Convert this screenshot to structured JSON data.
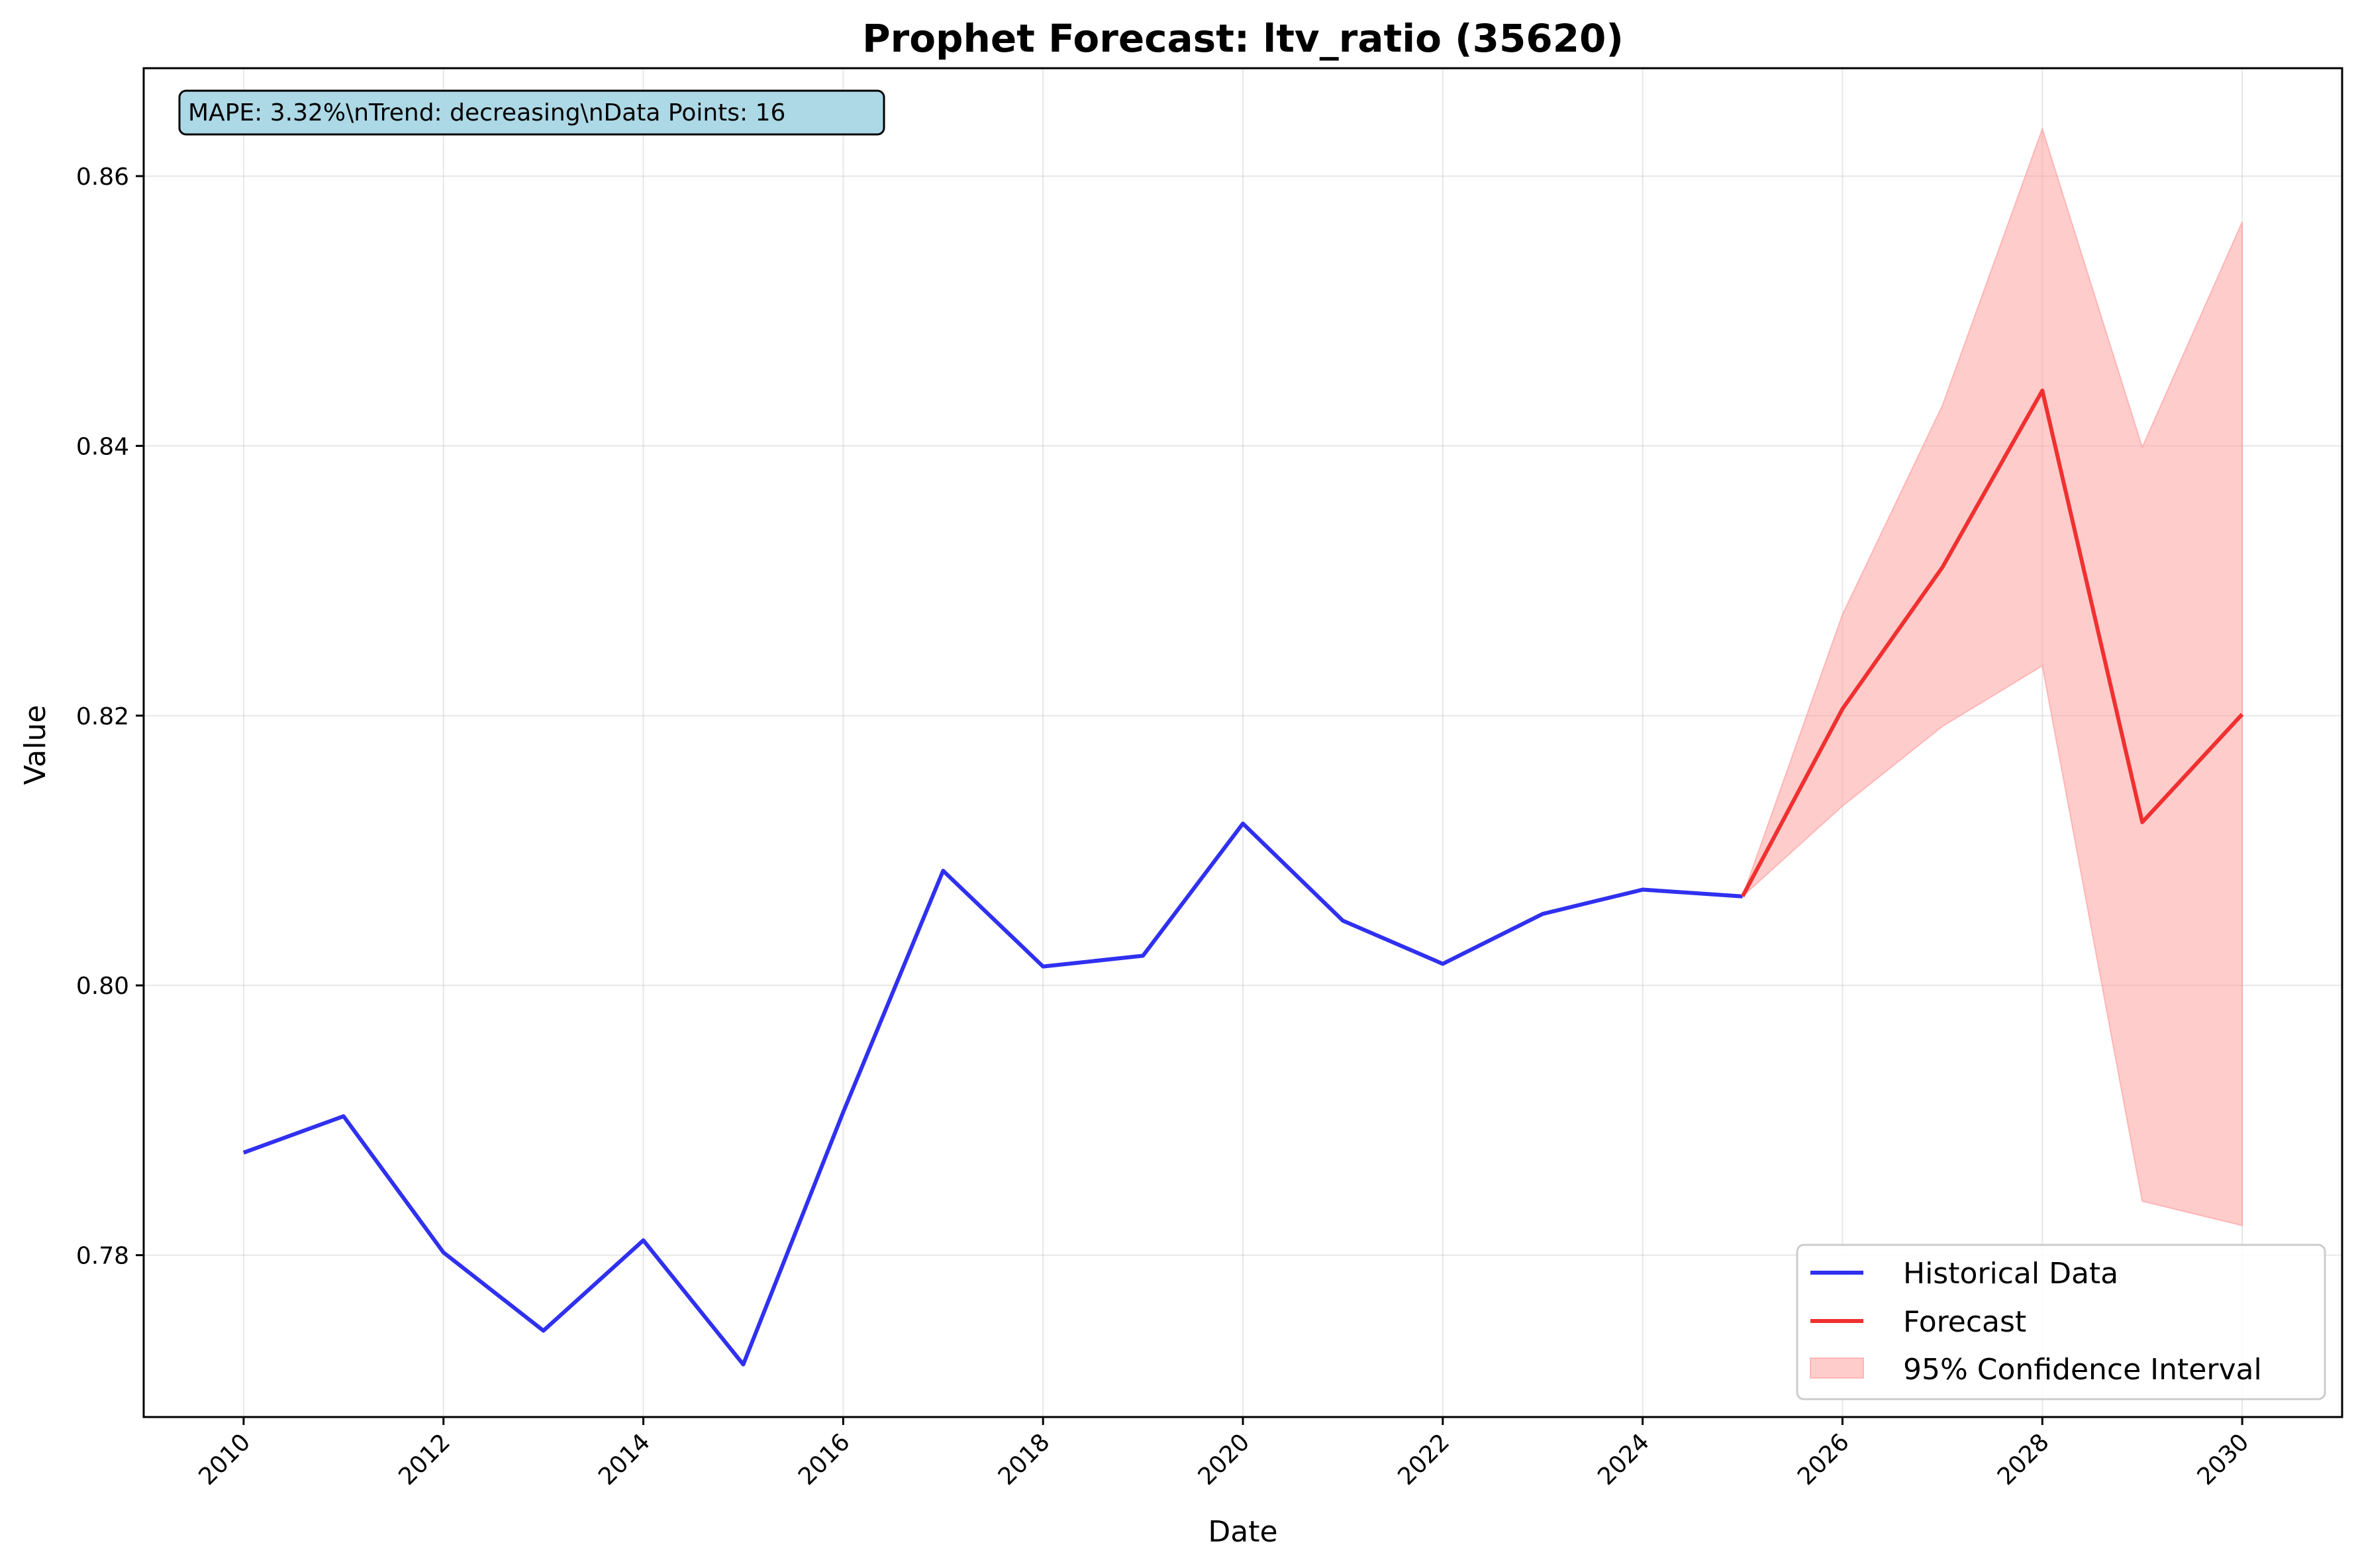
{
  "chart_data": {
    "type": "line",
    "title": "Prophet Forecast: ltv_ratio (35620)",
    "xlabel": "Date",
    "ylabel": "Value",
    "xlim": [
      2009,
      2031
    ],
    "ylim": [
      0.768,
      0.868
    ],
    "xticks": [
      2010,
      2012,
      2014,
      2016,
      2018,
      2020,
      2022,
      2024,
      2026,
      2028,
      2030
    ],
    "yticks": [
      0.78,
      0.8,
      0.82,
      0.84,
      0.86
    ],
    "ytick_labels": [
      "0.78",
      "0.80",
      "0.82",
      "0.84",
      "0.86"
    ],
    "grid": true,
    "legend_position": "lower-right",
    "annotation": "MAPE: 3.32%\\nTrend: decreasing\\nData Points: 16",
    "series": [
      {
        "name": "Historical Data",
        "color": "#3030f0",
        "x": [
          2010,
          2011,
          2012,
          2013,
          2014,
          2015,
          2016,
          2017,
          2018,
          2019,
          2020,
          2021,
          2022,
          2023,
          2024,
          2025
        ],
        "y": [
          0.7876,
          0.7903,
          0.7802,
          0.7744,
          0.7811,
          0.7719,
          0.7906,
          0.8085,
          0.8014,
          0.8022,
          0.812,
          0.8048,
          0.8016,
          0.8053,
          0.8071,
          0.8066
        ]
      },
      {
        "name": "Forecast",
        "color": "#f03030",
        "x": [
          2025,
          2026,
          2027,
          2028,
          2029,
          2030
        ],
        "y": [
          0.8066,
          0.8205,
          0.831,
          0.8441,
          0.8121,
          0.8201
        ]
      }
    ],
    "confidence_interval": {
      "name": "95% Confidence Interval",
      "color": "#ff9999",
      "x": [
        2025,
        2026,
        2027,
        2028,
        2029,
        2030
      ],
      "lower": [
        0.8066,
        0.8133,
        0.8192,
        0.8237,
        0.784,
        0.7822
      ],
      "upper": [
        0.8066,
        0.8275,
        0.843,
        0.8635,
        0.8399,
        0.8566
      ]
    }
  }
}
